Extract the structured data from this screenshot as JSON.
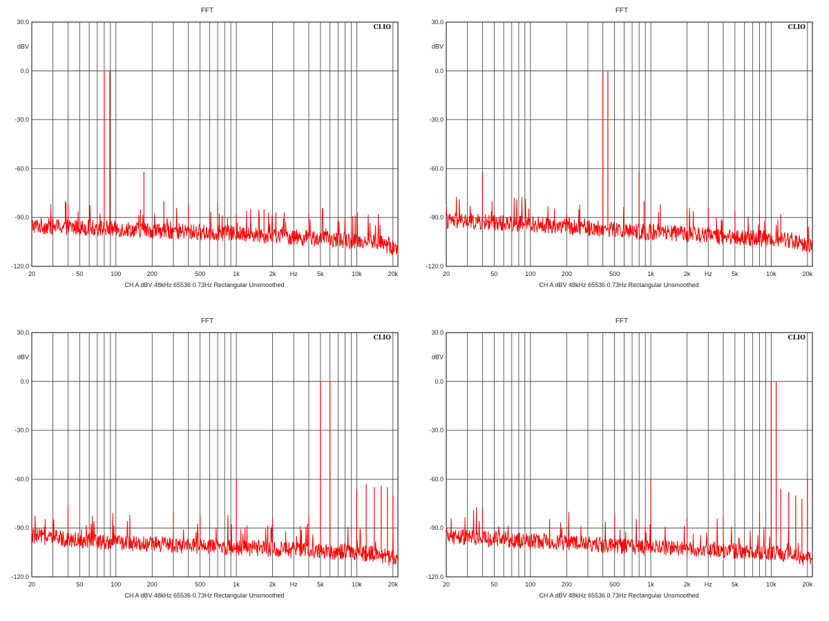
{
  "colors": {
    "trace": "#ff0000",
    "grid": "#000000",
    "background": "#ffffff"
  },
  "chart_data": [
    {
      "type": "line",
      "title": "FFT",
      "brand": "CLIO",
      "ylabel": "dBV",
      "footer": "CH A   dBV   48kHz   65536   0.73Hz   Rectangular   Unsmoothed",
      "x_scale": "log",
      "xlim": [
        20,
        22000
      ],
      "ylim": [
        -120,
        30
      ],
      "y_ticks": [
        "30.0",
        "0.0",
        "-30.0",
        "-60.0",
        "-90.0",
        "-120.0"
      ],
      "x_tick_labels": [
        "20",
        "50",
        "100",
        "200",
        "500",
        "1k",
        "2k",
        "Hz",
        "5k",
        "10k",
        "20k"
      ],
      "grid": true,
      "series": [
        {
          "noise_floor": [
            [
              20,
              -95
            ],
            [
              100,
              -97
            ],
            [
              1000,
              -100
            ],
            [
              5000,
              -103
            ],
            [
              15000,
              -105
            ],
            [
              22000,
              -110
            ]
          ],
          "peaks": [
            [
              80,
              0
            ],
            [
              89,
              0
            ],
            [
              38,
              -80
            ],
            [
              40,
              -82
            ],
            [
              160,
              -85
            ],
            [
              171,
              -62
            ],
            [
              250,
              -80
            ],
            [
              400,
              -82
            ],
            [
              700,
              -80
            ],
            [
              1000,
              -88
            ],
            [
              1700,
              -85
            ],
            [
              2500,
              -87
            ],
            [
              4000,
              -88
            ]
          ]
        }
      ]
    },
    {
      "type": "line",
      "title": "FFT",
      "brand": "CLIO",
      "ylabel": "dBV",
      "footer": "CH A   dBV   48kHz   65536   0.73Hz   Rectangular   Unsmoothed",
      "x_scale": "log",
      "xlim": [
        20,
        22000
      ],
      "ylim": [
        -120,
        30
      ],
      "y_ticks": [
        "30.0",
        "0.0",
        "-30.0",
        "-60.0",
        "-90.0",
        "-120.0"
      ],
      "x_tick_labels": [
        "20",
        "50",
        "100",
        "200",
        "500",
        "1k",
        "2k",
        "Hz",
        "5k",
        "10k",
        "20k"
      ],
      "grid": true,
      "series": [
        {
          "noise_floor": [
            [
              20,
              -92
            ],
            [
              100,
              -94
            ],
            [
              1000,
              -99
            ],
            [
              5000,
              -102
            ],
            [
              15000,
              -104
            ],
            [
              22000,
              -108
            ]
          ],
          "peaks": [
            [
              400,
              0
            ],
            [
              440,
              0
            ],
            [
              40,
              -62
            ],
            [
              48,
              -80
            ],
            [
              800,
              -62
            ],
            [
              880,
              -80
            ],
            [
              1200,
              -82
            ],
            [
              2000,
              -85
            ],
            [
              3000,
              -84
            ],
            [
              5000,
              -86
            ],
            [
              8000,
              -88
            ],
            [
              12000,
              -88
            ],
            [
              20000,
              -90
            ]
          ]
        }
      ]
    },
    {
      "type": "line",
      "title": "FFT",
      "brand": "CLIO",
      "ylabel": "dBV",
      "footer": "CH A   dBV   48kHz   65536   0.73Hz   Rectangular   Unsmoothed",
      "x_scale": "log",
      "xlim": [
        20,
        22000
      ],
      "ylim": [
        -120,
        30
      ],
      "y_ticks": [
        "30.0",
        "0.0",
        "-30.0",
        "-60.0",
        "-90.0",
        "-120.0"
      ],
      "x_tick_labels": [
        "20",
        "50",
        "100",
        "200",
        "500",
        "1k",
        "2k",
        "Hz",
        "5k",
        "10k",
        "20k"
      ],
      "grid": true,
      "series": [
        {
          "noise_floor": [
            [
              20,
              -95
            ],
            [
              100,
              -99
            ],
            [
              1000,
              -102
            ],
            [
              5000,
              -104
            ],
            [
              15000,
              -106
            ],
            [
              22000,
              -110
            ]
          ],
          "peaks": [
            [
              5000,
              0
            ],
            [
              6000,
              0
            ],
            [
              40,
              -76
            ],
            [
              1000,
              -60
            ],
            [
              300,
              -80
            ],
            [
              500,
              -82
            ],
            [
              2000,
              -84
            ],
            [
              4000,
              -82
            ],
            [
              10000,
              -66
            ],
            [
              12000,
              -63
            ],
            [
              14000,
              -65
            ],
            [
              16000,
              -64
            ],
            [
              18000,
              -65
            ],
            [
              20000,
              -70
            ]
          ]
        }
      ]
    },
    {
      "type": "line",
      "title": "FFT",
      "brand": "CLIO",
      "ylabel": "dBV",
      "footer": "CH A   dBV   48kHz   65536   0.73Hz   Rectangular   Unsmoothed",
      "x_scale": "log",
      "xlim": [
        20,
        22000
      ],
      "ylim": [
        -120,
        30
      ],
      "y_ticks": [
        "30.0",
        "0.0",
        "-30.0",
        "-60.0",
        "-90.0",
        "-120.0"
      ],
      "x_tick_labels": [
        "20",
        "50",
        "100",
        "200",
        "500",
        "1k",
        "2k",
        "Hz",
        "5k",
        "10k",
        "20k"
      ],
      "grid": true,
      "series": [
        {
          "noise_floor": [
            [
              20,
              -95
            ],
            [
              100,
              -98
            ],
            [
              1000,
              -102
            ],
            [
              5000,
              -104
            ],
            [
              15000,
              -106
            ],
            [
              22000,
              -110
            ]
          ],
          "peaks": [
            [
              10000,
              0
            ],
            [
              11000,
              0
            ],
            [
              40,
              -78
            ],
            [
              1000,
              -60
            ],
            [
              500,
              -82
            ],
            [
              2000,
              -84
            ],
            [
              4000,
              -82
            ],
            [
              8000,
              -80
            ],
            [
              12000,
              -66
            ],
            [
              14000,
              -68
            ],
            [
              16000,
              -70
            ],
            [
              18000,
              -72
            ],
            [
              20000,
              -60
            ]
          ]
        }
      ]
    }
  ]
}
